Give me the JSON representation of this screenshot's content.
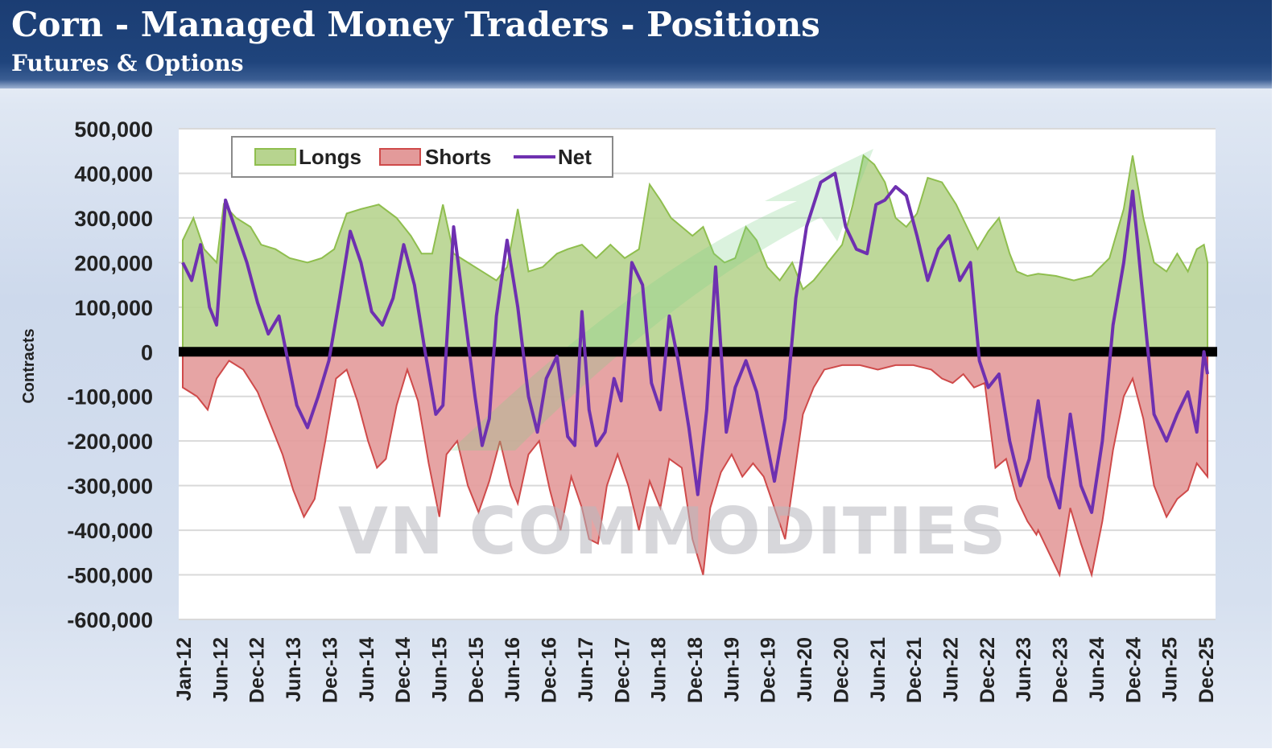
{
  "header": {
    "title": "Corn - Managed Money Traders - Positions",
    "subtitle": "Futures & Options"
  },
  "watermark": "VN COMMODITIES",
  "colors": {
    "longs_fill": "#b7d48f",
    "longs_line": "#8fbe4e",
    "shorts_fill": "#e39a9a",
    "shorts_line": "#cf4a4a",
    "net_line": "#6e30b0",
    "zero_line": "#000000",
    "header_bg": "#1f447c"
  },
  "chart_data": {
    "type": "area",
    "title": "Corn - Managed Money Traders - Positions",
    "subtitle": "Futures & Options",
    "ylabel": "Contracts",
    "xlabel": "",
    "ylim": [
      -600000,
      500000
    ],
    "yticks": [
      500000,
      400000,
      300000,
      200000,
      100000,
      0,
      -100000,
      -200000,
      -300000,
      -400000,
      -500000,
      -600000
    ],
    "ytick_labels": [
      "500,000",
      "400,000",
      "300,000",
      "200,000",
      "100,000",
      "0",
      "-100,000",
      "-200,000",
      "-300,000",
      "-400,000",
      "-500,000",
      "-600,000"
    ],
    "xlim": [
      0,
      48
    ],
    "xticks": [
      "Jan-12",
      "Jun-12",
      "Dec-12",
      "Jun-13",
      "Dec-13",
      "Jun-14",
      "Dec-14",
      "Jun-15",
      "Dec-15",
      "Jun-16",
      "Dec-16",
      "Jun-17",
      "Dec-17",
      "Jun-18",
      "Dec-18",
      "Jun-19",
      "Dec-19",
      "Jun-20",
      "Dec-20",
      "Jun-21",
      "Dec-21",
      "Jun-22",
      "Dec-22",
      "Jun-23",
      "Dec-23",
      "Jun-24",
      "Dec-24",
      "Jun-25",
      "Dec-25"
    ],
    "legend": {
      "position": "top-left",
      "entries": [
        "Longs",
        "Shorts",
        "Net"
      ]
    },
    "grid": true,
    "series": [
      {
        "name": "Longs",
        "kind": "area",
        "points": [
          [
            0,
            250000
          ],
          [
            0.6,
            300000
          ],
          [
            1.2,
            230000
          ],
          [
            1.9,
            200000
          ],
          [
            2.3,
            330000
          ],
          [
            3,
            300000
          ],
          [
            3.8,
            280000
          ],
          [
            4.4,
            240000
          ],
          [
            5.2,
            230000
          ],
          [
            6,
            210000
          ],
          [
            7,
            200000
          ],
          [
            7.8,
            210000
          ],
          [
            8.5,
            230000
          ],
          [
            9.2,
            310000
          ],
          [
            10,
            320000
          ],
          [
            11,
            330000
          ],
          [
            12,
            300000
          ],
          [
            12.8,
            260000
          ],
          [
            13.4,
            220000
          ],
          [
            14,
            220000
          ],
          [
            14.6,
            330000
          ],
          [
            15.2,
            220000
          ],
          [
            16,
            200000
          ],
          [
            16.8,
            180000
          ],
          [
            17.6,
            160000
          ],
          [
            18.2,
            190000
          ],
          [
            18.8,
            320000
          ],
          [
            19.4,
            180000
          ],
          [
            20.2,
            190000
          ],
          [
            21,
            220000
          ],
          [
            21.6,
            230000
          ],
          [
            22.4,
            240000
          ],
          [
            23.2,
            210000
          ],
          [
            24,
            240000
          ],
          [
            24.8,
            210000
          ],
          [
            25.6,
            230000
          ],
          [
            26.2,
            375000
          ],
          [
            26.8,
            340000
          ],
          [
            27.4,
            300000
          ],
          [
            28,
            280000
          ],
          [
            28.6,
            260000
          ],
          [
            29.2,
            280000
          ],
          [
            29.8,
            220000
          ],
          [
            30.4,
            200000
          ],
          [
            31,
            210000
          ],
          [
            31.6,
            280000
          ],
          [
            32.2,
            250000
          ],
          [
            32.8,
            190000
          ],
          [
            33.5,
            160000
          ],
          [
            34.2,
            200000
          ],
          [
            34.8,
            140000
          ],
          [
            35.4,
            160000
          ],
          [
            36.2,
            200000
          ],
          [
            37,
            240000
          ],
          [
            37.6,
            330000
          ],
          [
            38.2,
            440000
          ],
          [
            38.8,
            420000
          ],
          [
            39.4,
            380000
          ],
          [
            40,
            300000
          ],
          [
            40.6,
            280000
          ],
          [
            41.2,
            310000
          ],
          [
            41.8,
            390000
          ],
          [
            42.6,
            380000
          ],
          [
            43.4,
            330000
          ],
          [
            44,
            280000
          ],
          [
            44.6,
            230000
          ],
          [
            45.2,
            270000
          ],
          [
            45.8,
            300000
          ],
          [
            46.4,
            220000
          ],
          [
            46.8,
            180000
          ],
          [
            47.4,
            170000
          ],
          [
            48,
            175000
          ]
        ]
      },
      {
        "name": "Shorts",
        "kind": "area",
        "points": [
          [
            0,
            -80000
          ],
          [
            0.8,
            -100000
          ],
          [
            1.4,
            -130000
          ],
          [
            1.9,
            -60000
          ],
          [
            2.6,
            -20000
          ],
          [
            3.4,
            -40000
          ],
          [
            4.2,
            -90000
          ],
          [
            5,
            -170000
          ],
          [
            5.6,
            -230000
          ],
          [
            6.2,
            -310000
          ],
          [
            6.8,
            -370000
          ],
          [
            7.4,
            -330000
          ],
          [
            8,
            -200000
          ],
          [
            8.6,
            -60000
          ],
          [
            9.2,
            -40000
          ],
          [
            9.8,
            -110000
          ],
          [
            10.4,
            -200000
          ],
          [
            10.9,
            -260000
          ],
          [
            11.4,
            -240000
          ],
          [
            12,
            -120000
          ],
          [
            12.6,
            -40000
          ],
          [
            13.2,
            -110000
          ],
          [
            13.8,
            -250000
          ],
          [
            14.4,
            -370000
          ],
          [
            14.8,
            -230000
          ],
          [
            15.4,
            -200000
          ],
          [
            16,
            -300000
          ],
          [
            16.6,
            -360000
          ],
          [
            17.2,
            -290000
          ],
          [
            17.8,
            -200000
          ],
          [
            18.4,
            -300000
          ],
          [
            18.8,
            -340000
          ],
          [
            19.4,
            -230000
          ],
          [
            20,
            -200000
          ],
          [
            20.6,
            -310000
          ],
          [
            21.2,
            -400000
          ],
          [
            21.8,
            -280000
          ],
          [
            22.4,
            -350000
          ],
          [
            22.8,
            -420000
          ],
          [
            23.3,
            -430000
          ],
          [
            23.8,
            -300000
          ],
          [
            24.4,
            -230000
          ],
          [
            25,
            -300000
          ],
          [
            25.6,
            -400000
          ],
          [
            26.2,
            -290000
          ],
          [
            26.8,
            -350000
          ],
          [
            27.3,
            -240000
          ],
          [
            28,
            -260000
          ],
          [
            28.6,
            -420000
          ],
          [
            29.2,
            -500000
          ],
          [
            29.6,
            -350000
          ],
          [
            30.2,
            -270000
          ],
          [
            30.8,
            -230000
          ],
          [
            31.4,
            -280000
          ],
          [
            32,
            -250000
          ],
          [
            32.6,
            -280000
          ],
          [
            33.2,
            -350000
          ],
          [
            33.8,
            -420000
          ],
          [
            34.3,
            -280000
          ],
          [
            34.8,
            -140000
          ],
          [
            35.4,
            -80000
          ],
          [
            36,
            -40000
          ],
          [
            37,
            -30000
          ],
          [
            38,
            -30000
          ],
          [
            39,
            -40000
          ],
          [
            40,
            -30000
          ],
          [
            41,
            -30000
          ],
          [
            42,
            -40000
          ],
          [
            42.6,
            -60000
          ],
          [
            43.2,
            -70000
          ],
          [
            43.8,
            -50000
          ],
          [
            44.4,
            -80000
          ],
          [
            45,
            -70000
          ],
          [
            45.6,
            -260000
          ],
          [
            46.2,
            -240000
          ],
          [
            46.8,
            -330000
          ],
          [
            47.4,
            -380000
          ],
          [
            47.9,
            -410000
          ],
          [
            48,
            -400000
          ]
        ]
      },
      {
        "name": "Net",
        "kind": "line",
        "points": [
          [
            0,
            200000
          ],
          [
            0.5,
            160000
          ],
          [
            1,
            240000
          ],
          [
            1.5,
            100000
          ],
          [
            1.9,
            60000
          ],
          [
            2.4,
            340000
          ],
          [
            3,
            270000
          ],
          [
            3.6,
            200000
          ],
          [
            4.2,
            110000
          ],
          [
            4.8,
            40000
          ],
          [
            5.4,
            80000
          ],
          [
            5.9,
            -20000
          ],
          [
            6.4,
            -120000
          ],
          [
            7,
            -170000
          ],
          [
            7.6,
            -100000
          ],
          [
            8.2,
            -20000
          ],
          [
            8.8,
            120000
          ],
          [
            9.4,
            270000
          ],
          [
            10,
            200000
          ],
          [
            10.6,
            90000
          ],
          [
            11.2,
            60000
          ],
          [
            11.8,
            120000
          ],
          [
            12.4,
            240000
          ],
          [
            13,
            150000
          ],
          [
            13.6,
            0
          ],
          [
            14.2,
            -140000
          ],
          [
            14.6,
            -120000
          ],
          [
            15.2,
            280000
          ],
          [
            15.8,
            90000
          ],
          [
            16.4,
            -100000
          ],
          [
            16.8,
            -210000
          ],
          [
            17.2,
            -150000
          ],
          [
            17.6,
            80000
          ],
          [
            18.2,
            250000
          ],
          [
            18.8,
            100000
          ],
          [
            19.4,
            -100000
          ],
          [
            19.9,
            -180000
          ],
          [
            20.4,
            -60000
          ],
          [
            21,
            -10000
          ],
          [
            21.6,
            -190000
          ],
          [
            22,
            -210000
          ],
          [
            22.4,
            90000
          ],
          [
            22.8,
            -130000
          ],
          [
            23.2,
            -210000
          ],
          [
            23.7,
            -180000
          ],
          [
            24.2,
            -60000
          ],
          [
            24.6,
            -110000
          ],
          [
            25.2,
            200000
          ],
          [
            25.8,
            150000
          ],
          [
            26.3,
            -70000
          ],
          [
            26.8,
            -130000
          ],
          [
            27.3,
            80000
          ],
          [
            27.8,
            -20000
          ],
          [
            28.4,
            -170000
          ],
          [
            28.9,
            -320000
          ],
          [
            29.4,
            -130000
          ],
          [
            29.9,
            190000
          ],
          [
            30.5,
            -180000
          ],
          [
            31,
            -80000
          ],
          [
            31.6,
            -20000
          ],
          [
            32.2,
            -90000
          ],
          [
            32.7,
            -190000
          ],
          [
            33.2,
            -290000
          ],
          [
            33.8,
            -150000
          ],
          [
            34.4,
            120000
          ],
          [
            35,
            280000
          ],
          [
            35.8,
            380000
          ],
          [
            36.6,
            400000
          ],
          [
            37.2,
            280000
          ],
          [
            37.8,
            230000
          ],
          [
            38.4,
            220000
          ],
          [
            38.9,
            330000
          ],
          [
            39.4,
            340000
          ],
          [
            40,
            370000
          ],
          [
            40.6,
            350000
          ],
          [
            41.2,
            260000
          ],
          [
            41.8,
            160000
          ],
          [
            42.4,
            230000
          ],
          [
            43,
            260000
          ],
          [
            43.6,
            160000
          ],
          [
            44.2,
            200000
          ],
          [
            44.7,
            -20000
          ],
          [
            45.2,
            -80000
          ],
          [
            45.8,
            -50000
          ],
          [
            46.4,
            -200000
          ],
          [
            47,
            -300000
          ],
          [
            47.5,
            -240000
          ],
          [
            48,
            -110000
          ]
        ]
      }
    ],
    "net_extension": [
      [
        48,
        -110000
      ],
      [
        48.6,
        -280000
      ],
      [
        49.2,
        -350000
      ],
      [
        49.8,
        -140000
      ],
      [
        50.4,
        -300000
      ],
      [
        51,
        -360000
      ],
      [
        51.6,
        -200000
      ],
      [
        52.2,
        60000
      ],
      [
        52.8,
        200000
      ],
      [
        53.3,
        360000
      ],
      [
        53.9,
        110000
      ],
      [
        54.5,
        -140000
      ],
      [
        55.2,
        -200000
      ],
      [
        55.8,
        -140000
      ],
      [
        56.4,
        -90000
      ],
      [
        56.9,
        -180000
      ],
      [
        57.3,
        0
      ],
      [
        57.5,
        -50000
      ]
    ],
    "longs_extension": [
      [
        48,
        175000
      ],
      [
        49,
        170000
      ],
      [
        50,
        160000
      ],
      [
        51,
        170000
      ],
      [
        52,
        210000
      ],
      [
        52.8,
        320000
      ],
      [
        53.3,
        440000
      ],
      [
        53.9,
        300000
      ],
      [
        54.5,
        200000
      ],
      [
        55.2,
        180000
      ],
      [
        55.8,
        220000
      ],
      [
        56.4,
        180000
      ],
      [
        56.9,
        230000
      ],
      [
        57.3,
        240000
      ],
      [
        57.5,
        200000
      ]
    ],
    "shorts_extension": [
      [
        48,
        -400000
      ],
      [
        48.6,
        -450000
      ],
      [
        49.2,
        -500000
      ],
      [
        49.8,
        -350000
      ],
      [
        50.4,
        -430000
      ],
      [
        51,
        -500000
      ],
      [
        51.6,
        -380000
      ],
      [
        52.2,
        -220000
      ],
      [
        52.8,
        -100000
      ],
      [
        53.3,
        -60000
      ],
      [
        53.9,
        -150000
      ],
      [
        54.5,
        -300000
      ],
      [
        55.2,
        -370000
      ],
      [
        55.8,
        -330000
      ],
      [
        56.4,
        -310000
      ],
      [
        56.9,
        -250000
      ],
      [
        57.3,
        -270000
      ],
      [
        57.5,
        -280000
      ]
    ]
  }
}
